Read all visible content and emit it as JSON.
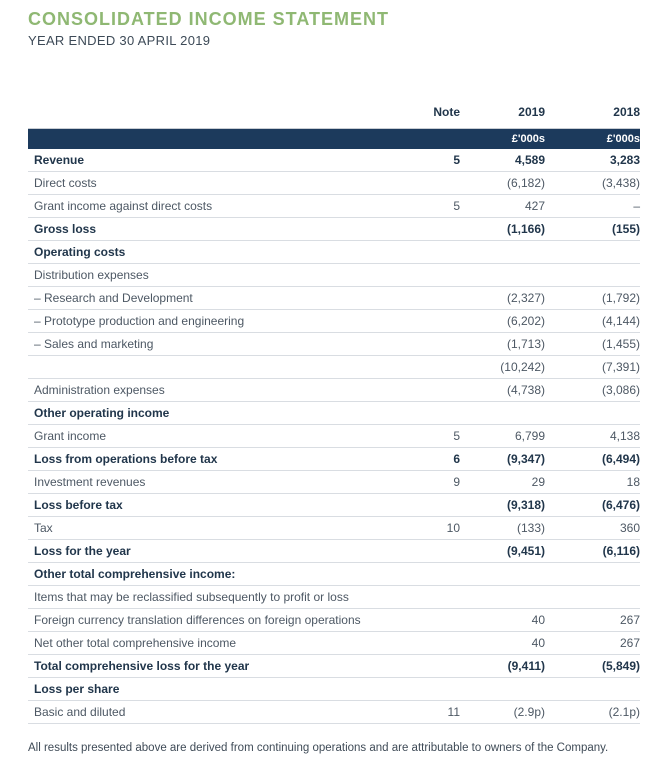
{
  "page": {
    "title": "CONSOLIDATED INCOME STATEMENT",
    "subtitle": "YEAR ENDED 30 APRIL 2019",
    "footnote": "All results presented above are derived from continuing operations and are attributable to owners of the Company."
  },
  "table": {
    "columns": {
      "note": "Note",
      "y2019": "2019",
      "y2018": "2018"
    },
    "units_row": {
      "y2019": "£'000s",
      "y2018": "£'000s"
    },
    "rows": [
      {
        "label": "Revenue",
        "note": "5",
        "y2019": "4,589",
        "y2018": "3,283",
        "style": "bold"
      },
      {
        "label": "Direct costs",
        "note": "",
        "y2019": "(6,182)",
        "y2018": "(3,438)",
        "style": "normal"
      },
      {
        "label": "Grant income against direct costs",
        "note": "5",
        "y2019": "427",
        "y2018": "–",
        "style": "normal"
      },
      {
        "label": "Gross loss",
        "note": "",
        "y2019": "(1,166)",
        "y2018": "(155)",
        "style": "bold"
      },
      {
        "label": "Operating costs",
        "note": "",
        "y2019": "",
        "y2018": "",
        "style": "bold"
      },
      {
        "label": "Distribution expenses",
        "note": "",
        "y2019": "",
        "y2018": "",
        "style": "normal"
      },
      {
        "label": "– Research and Development",
        "note": "",
        "y2019": "(2,327)",
        "y2018": "(1,792)",
        "style": "normal"
      },
      {
        "label": "– Prototype production and engineering",
        "note": "",
        "y2019": "(6,202)",
        "y2018": "(4,144)",
        "style": "normal"
      },
      {
        "label": "– Sales and marketing",
        "note": "",
        "y2019": "(1,713)",
        "y2018": "(1,455)",
        "style": "normal"
      },
      {
        "label": "",
        "note": "",
        "y2019": "(10,242)",
        "y2018": "(7,391)",
        "style": "normal"
      },
      {
        "label": "Administration expenses",
        "note": "",
        "y2019": "(4,738)",
        "y2018": "(3,086)",
        "style": "normal"
      },
      {
        "label": "Other operating income",
        "note": "",
        "y2019": "",
        "y2018": "",
        "style": "bold"
      },
      {
        "label": "Grant income",
        "note": "5",
        "y2019": "6,799",
        "y2018": "4,138",
        "style": "normal"
      },
      {
        "label": "Loss from operations before tax",
        "note": "6",
        "y2019": "(9,347)",
        "y2018": "(6,494)",
        "style": "bold"
      },
      {
        "label": "Investment revenues",
        "note": "9",
        "y2019": "29",
        "y2018": "18",
        "style": "normal"
      },
      {
        "label": "Loss before tax",
        "note": "",
        "y2019": "(9,318)",
        "y2018": "(6,476)",
        "style": "bold"
      },
      {
        "label": "Tax",
        "note": "10",
        "y2019": "(133)",
        "y2018": "360",
        "style": "normal"
      },
      {
        "label": "Loss for the year",
        "note": "",
        "y2019": "(9,451)",
        "y2018": "(6,116)",
        "style": "bold"
      },
      {
        "label": "Other total comprehensive income:",
        "note": "",
        "y2019": "",
        "y2018": "",
        "style": "bold"
      },
      {
        "label": "Items that may be reclassified subsequently to profit or loss",
        "note": "",
        "y2019": "",
        "y2018": "",
        "style": "normal"
      },
      {
        "label": "Foreign currency translation differences on foreign operations",
        "note": "",
        "y2019": "40",
        "y2018": "267",
        "style": "normal"
      },
      {
        "label": "Net other total comprehensive income",
        "note": "",
        "y2019": "40",
        "y2018": "267",
        "style": "normal"
      },
      {
        "label": "Total comprehensive loss for the year",
        "note": "",
        "y2019": "(9,411)",
        "y2018": "(5,849)",
        "style": "bold"
      },
      {
        "label": "Loss per share",
        "note": "",
        "y2019": "",
        "y2018": "",
        "style": "bold"
      },
      {
        "label": "Basic and diluted",
        "note": "11",
        "y2019": "(2.9p)",
        "y2018": "(2.1p)",
        "style": "normal"
      }
    ]
  },
  "colors": {
    "accent_green": "#8fb873",
    "header_navy": "#1c3a5c",
    "text_dark": "#21364b",
    "text_body": "#4d5864"
  }
}
